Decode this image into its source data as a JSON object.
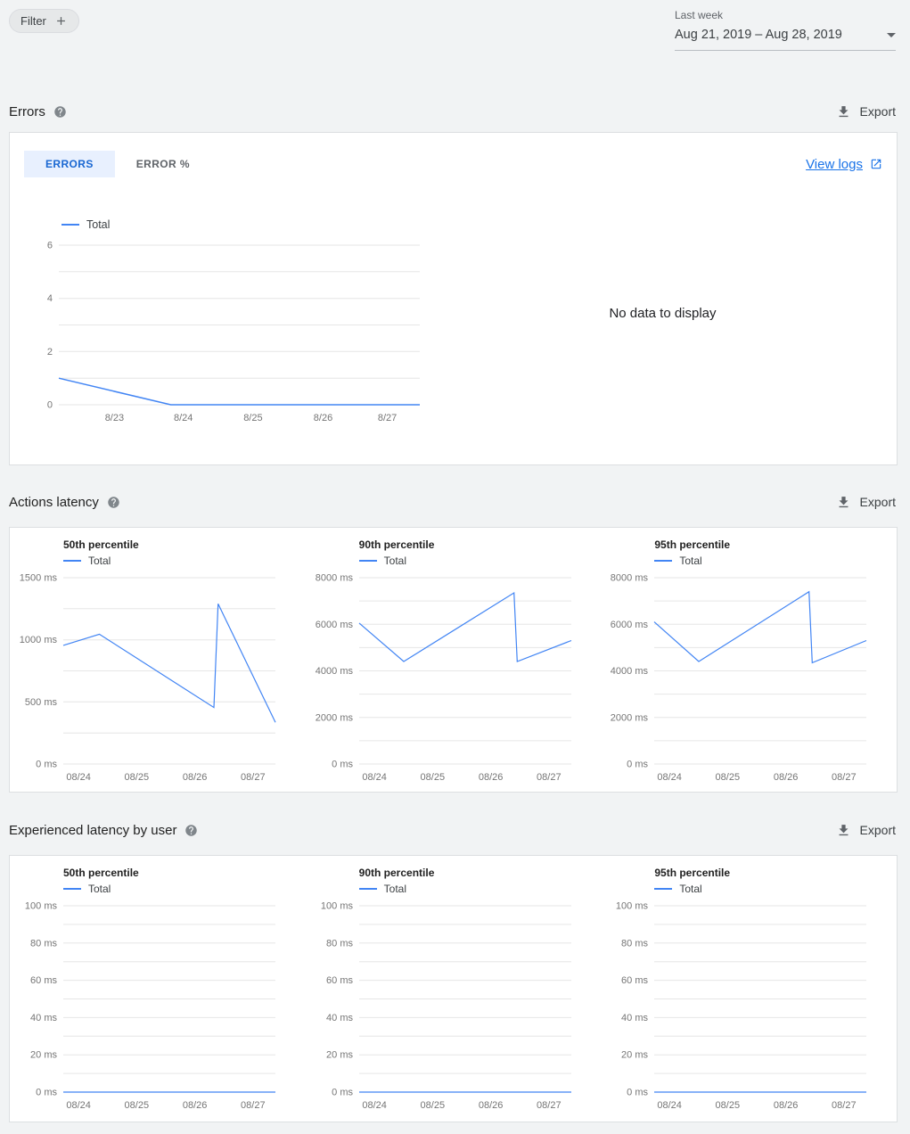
{
  "colors": {
    "accent": "#4285f4",
    "link": "#1a73e8",
    "tab_active_bg": "#e8f0fe",
    "line": "#4285f4",
    "gridline": "#e6e6e6",
    "tick": "#757575"
  },
  "toolbar": {
    "filter_label": "Filter",
    "date_preset_label": "Last week",
    "date_range_value": "Aug 21, 2019 – Aug 28, 2019"
  },
  "sections": {
    "errors": {
      "title": "Errors",
      "export_label": "Export"
    },
    "actions_latency": {
      "title": "Actions latency",
      "export_label": "Export"
    },
    "experienced_latency": {
      "title": "Experienced latency by user",
      "export_label": "Export"
    }
  },
  "errors_card": {
    "tabs": [
      "ERRORS",
      "ERROR %"
    ],
    "active_tab": "ERRORS",
    "view_logs_label": "View logs",
    "no_data_text": "No data to display"
  },
  "chart_data": [
    {
      "type": "line",
      "title": "Errors",
      "legend": "Total",
      "ylim": [
        0,
        6
      ],
      "y_ticks": [
        0,
        2,
        4,
        6
      ],
      "y_suffix": "",
      "x_ticks": [
        "8/23",
        "8/24",
        "8/25",
        "8/26",
        "8/27"
      ],
      "x_tick_pos": [
        0.154,
        0.345,
        0.538,
        0.732,
        0.91
      ],
      "series": [
        {
          "name": "Total",
          "points": [
            [
              0,
              1
            ],
            [
              0.31,
              0
            ],
            [
              1,
              0
            ]
          ]
        }
      ]
    },
    {
      "type": "line",
      "title": "50th percentile",
      "legend": "Total",
      "ylim": [
        0,
        1500
      ],
      "y_ticks": [
        0,
        500,
        1000,
        1500
      ],
      "y_suffix": " ms",
      "x_ticks": [
        "08/24",
        "08/25",
        "08/26",
        "08/27"
      ],
      "x_tick_pos": [
        0.072,
        0.346,
        0.62,
        0.894
      ],
      "series": [
        {
          "name": "Total",
          "points": [
            [
              0,
              955
            ],
            [
              0.17,
              1045
            ],
            [
              0.71,
              455
            ],
            [
              0.73,
              1290
            ],
            [
              1,
              335
            ]
          ]
        }
      ]
    },
    {
      "type": "line",
      "title": "90th percentile",
      "legend": "Total",
      "ylim": [
        0,
        8000
      ],
      "y_ticks": [
        0,
        2000,
        4000,
        6000,
        8000
      ],
      "y_suffix": " ms",
      "x_ticks": [
        "08/24",
        "08/25",
        "08/26",
        "08/27"
      ],
      "x_tick_pos": [
        0.072,
        0.346,
        0.62,
        0.894
      ],
      "series": [
        {
          "name": "Total",
          "points": [
            [
              0,
              6050
            ],
            [
              0.21,
              4400
            ],
            [
              0.73,
              7350
            ],
            [
              0.745,
              4400
            ],
            [
              1,
              5300
            ]
          ]
        }
      ]
    },
    {
      "type": "line",
      "title": "95th percentile",
      "legend": "Total",
      "ylim": [
        0,
        8000
      ],
      "y_ticks": [
        0,
        2000,
        4000,
        6000,
        8000
      ],
      "y_suffix": " ms",
      "x_ticks": [
        "08/24",
        "08/25",
        "08/26",
        "08/27"
      ],
      "x_tick_pos": [
        0.072,
        0.346,
        0.62,
        0.894
      ],
      "series": [
        {
          "name": "Total",
          "points": [
            [
              0,
              6100
            ],
            [
              0.21,
              4400
            ],
            [
              0.73,
              7400
            ],
            [
              0.745,
              4350
            ],
            [
              1,
              5300
            ]
          ]
        }
      ]
    },
    {
      "type": "line",
      "title": "50th percentile",
      "legend": "Total",
      "ylim": [
        0,
        100
      ],
      "y_ticks": [
        0,
        20,
        40,
        60,
        80,
        100
      ],
      "y_suffix": " ms",
      "x_ticks": [
        "08/24",
        "08/25",
        "08/26",
        "08/27"
      ],
      "x_tick_pos": [
        0.072,
        0.346,
        0.62,
        0.894
      ],
      "series": [
        {
          "name": "Total",
          "points": [
            [
              0,
              0
            ],
            [
              1,
              0
            ]
          ]
        }
      ]
    },
    {
      "type": "line",
      "title": "90th percentile",
      "legend": "Total",
      "ylim": [
        0,
        100
      ],
      "y_ticks": [
        0,
        20,
        40,
        60,
        80,
        100
      ],
      "y_suffix": " ms",
      "x_ticks": [
        "08/24",
        "08/25",
        "08/26",
        "08/27"
      ],
      "x_tick_pos": [
        0.072,
        0.346,
        0.62,
        0.894
      ],
      "series": [
        {
          "name": "Total",
          "points": [
            [
              0,
              0
            ],
            [
              1,
              0
            ]
          ]
        }
      ]
    },
    {
      "type": "line",
      "title": "95th percentile",
      "legend": "Total",
      "ylim": [
        0,
        100
      ],
      "y_ticks": [
        0,
        20,
        40,
        60,
        80,
        100
      ],
      "y_suffix": " ms",
      "x_ticks": [
        "08/24",
        "08/25",
        "08/26",
        "08/27"
      ],
      "x_tick_pos": [
        0.072,
        0.346,
        0.62,
        0.894
      ],
      "series": [
        {
          "name": "Total",
          "points": [
            [
              0,
              0
            ],
            [
              1,
              0
            ]
          ]
        }
      ]
    }
  ]
}
